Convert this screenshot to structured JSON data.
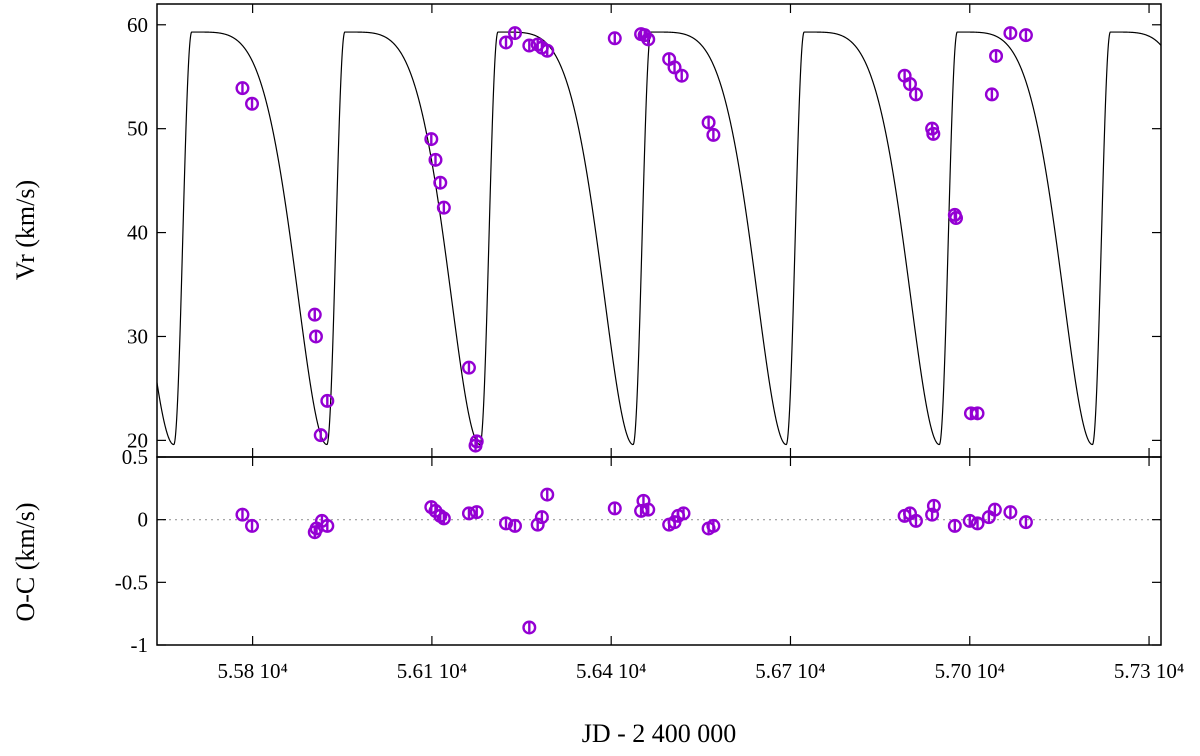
{
  "chart_data": [
    {
      "type": "line",
      "panel": "radial-velocity",
      "ylabel": "Vr (km/s)",
      "xlim": [
        55640,
        57320
      ],
      "ylim": [
        18.4,
        62.0
      ],
      "yticks": [
        20,
        30,
        40,
        50,
        60
      ],
      "y_extra_tick": 0.5,
      "grid": false,
      "point_color": "#9400d3",
      "model_color": "#000000",
      "model": {
        "period_days": 256.2,
        "reference_minimum_jd": 56180.5,
        "minimum_vr": 19.6,
        "maximum_vr": 59.3,
        "rise_days": 30,
        "sampled_extent": [
          55640,
          57320
        ]
      },
      "points": [
        {
          "x": 55783,
          "y": 53.9
        },
        {
          "x": 55799,
          "y": 52.4
        },
        {
          "x": 55904,
          "y": 32.1
        },
        {
          "x": 55906,
          "y": 30.0
        },
        {
          "x": 55914,
          "y": 20.5
        },
        {
          "x": 55925,
          "y": 23.8
        },
        {
          "x": 56099,
          "y": 49.0
        },
        {
          "x": 56106,
          "y": 47.0
        },
        {
          "x": 56114,
          "y": 44.8
        },
        {
          "x": 56120,
          "y": 42.4
        },
        {
          "x": 56162,
          "y": 27.0
        },
        {
          "x": 56173,
          "y": 19.5
        },
        {
          "x": 56175,
          "y": 19.9
        },
        {
          "x": 56224,
          "y": 58.3
        },
        {
          "x": 56239,
          "y": 59.2
        },
        {
          "x": 56263,
          "y": 58.0
        },
        {
          "x": 56277,
          "y": 58.1
        },
        {
          "x": 56284,
          "y": 57.8
        },
        {
          "x": 56293,
          "y": 57.5
        },
        {
          "x": 56406,
          "y": 58.7
        },
        {
          "x": 56450,
          "y": 59.1
        },
        {
          "x": 56456,
          "y": 59.0
        },
        {
          "x": 56462,
          "y": 58.6
        },
        {
          "x": 56497,
          "y": 56.7
        },
        {
          "x": 56506,
          "y": 55.9
        },
        {
          "x": 56518,
          "y": 55.1
        },
        {
          "x": 56563,
          "y": 50.6
        },
        {
          "x": 56571,
          "y": 49.4
        },
        {
          "x": 56891,
          "y": 55.1
        },
        {
          "x": 56900,
          "y": 54.3
        },
        {
          "x": 56910,
          "y": 53.3
        },
        {
          "x": 56937,
          "y": 50.0
        },
        {
          "x": 56939,
          "y": 49.5
        },
        {
          "x": 56975,
          "y": 41.7
        },
        {
          "x": 56977,
          "y": 41.4
        },
        {
          "x": 57002,
          "y": 22.6
        },
        {
          "x": 57013,
          "y": 22.6
        },
        {
          "x": 57037,
          "y": 53.3
        },
        {
          "x": 57044,
          "y": 57.0
        },
        {
          "x": 57068,
          "y": 59.2
        },
        {
          "x": 57094,
          "y": 59.0
        }
      ]
    },
    {
      "type": "scatter",
      "panel": "residuals",
      "xlabel": "JD - 2 400 000",
      "ylabel": "O-C (km/s)",
      "xlim": [
        55640,
        57320
      ],
      "ylim": [
        -1.0,
        0.5
      ],
      "yticks": [
        -1,
        -0.5,
        0,
        0.5
      ],
      "ytick_labels": [
        "-1",
        "-0.5",
        "0",
        ""
      ],
      "xticks": [
        55800,
        56100,
        56400,
        56700,
        57000,
        57300
      ],
      "xtick_labels": [
        "5.58 10⁴",
        "5.61 10⁴",
        "5.64 10⁴",
        "5.67 10⁴",
        "5.70 10⁴",
        "5.73 10⁴"
      ],
      "zero_line": true,
      "grid": false,
      "point_color": "#9400d3",
      "points": [
        {
          "x": 55783,
          "y": 0.04
        },
        {
          "x": 55799,
          "y": -0.05
        },
        {
          "x": 55904,
          "y": -0.1
        },
        {
          "x": 55907,
          "y": -0.07
        },
        {
          "x": 55916,
          "y": -0.01
        },
        {
          "x": 55925,
          "y": -0.05
        },
        {
          "x": 56099,
          "y": 0.1
        },
        {
          "x": 56106,
          "y": 0.07
        },
        {
          "x": 56114,
          "y": 0.03
        },
        {
          "x": 56120,
          "y": 0.01
        },
        {
          "x": 56162,
          "y": 0.05
        },
        {
          "x": 56175,
          "y": 0.06
        },
        {
          "x": 56224,
          "y": -0.03
        },
        {
          "x": 56239,
          "y": -0.05
        },
        {
          "x": 56263,
          "y": -0.86
        },
        {
          "x": 56277,
          "y": -0.04
        },
        {
          "x": 56284,
          "y": 0.02
        },
        {
          "x": 56293,
          "y": 0.2
        },
        {
          "x": 56406,
          "y": 0.09
        },
        {
          "x": 56450,
          "y": 0.07
        },
        {
          "x": 56454,
          "y": 0.15
        },
        {
          "x": 56462,
          "y": 0.08
        },
        {
          "x": 56497,
          "y": -0.04
        },
        {
          "x": 56506,
          "y": -0.02
        },
        {
          "x": 56512,
          "y": 0.03
        },
        {
          "x": 56521,
          "y": 0.05
        },
        {
          "x": 56563,
          "y": -0.07
        },
        {
          "x": 56571,
          "y": -0.05
        },
        {
          "x": 56891,
          "y": 0.03
        },
        {
          "x": 56900,
          "y": 0.05
        },
        {
          "x": 56910,
          "y": -0.01
        },
        {
          "x": 56937,
          "y": 0.04
        },
        {
          "x": 56940,
          "y": 0.11
        },
        {
          "x": 56975,
          "y": -0.05
        },
        {
          "x": 57000,
          "y": -0.01
        },
        {
          "x": 57013,
          "y": -0.03
        },
        {
          "x": 57032,
          "y": 0.02
        },
        {
          "x": 57042,
          "y": 0.08
        },
        {
          "x": 57068,
          "y": 0.06
        },
        {
          "x": 57094,
          "y": -0.02
        }
      ]
    }
  ]
}
